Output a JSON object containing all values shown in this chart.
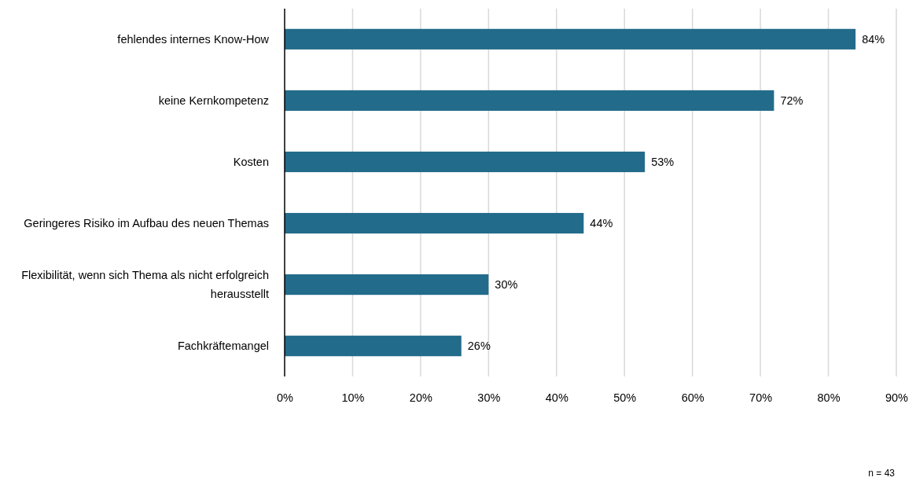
{
  "chart_data": {
    "type": "bar",
    "orientation": "horizontal",
    "categories": [
      "fehlendes internes Know-How",
      "keine Kernkompetenz",
      "Kosten",
      "Geringeres Risiko im Aufbau des neuen Themas",
      "Flexibilität, wenn sich Thema als nicht erfolgreich herausstellt",
      "Fachkräftemangel"
    ],
    "values": [
      84,
      72,
      53,
      44,
      30,
      26
    ],
    "value_labels": [
      "84%",
      "72%",
      "53%",
      "44%",
      "30%",
      "26%"
    ],
    "color": "#226b8a",
    "xlim": [
      0,
      90
    ],
    "xticks": [
      {
        "value": 0,
        "label": "0%"
      },
      {
        "value": 10,
        "label": "10%"
      },
      {
        "value": 20,
        "label": "20%"
      },
      {
        "value": 30,
        "label": "30%"
      },
      {
        "value": 40,
        "label": "40%"
      },
      {
        "value": 50,
        "label": "50%"
      },
      {
        "value": 60,
        "label": "60%"
      },
      {
        "value": 70,
        "label": "70%"
      },
      {
        "value": 80,
        "label": "80%"
      },
      {
        "value": 90,
        "label": "90%"
      }
    ],
    "grid": "x",
    "annotations": [
      "n = 43"
    ]
  }
}
